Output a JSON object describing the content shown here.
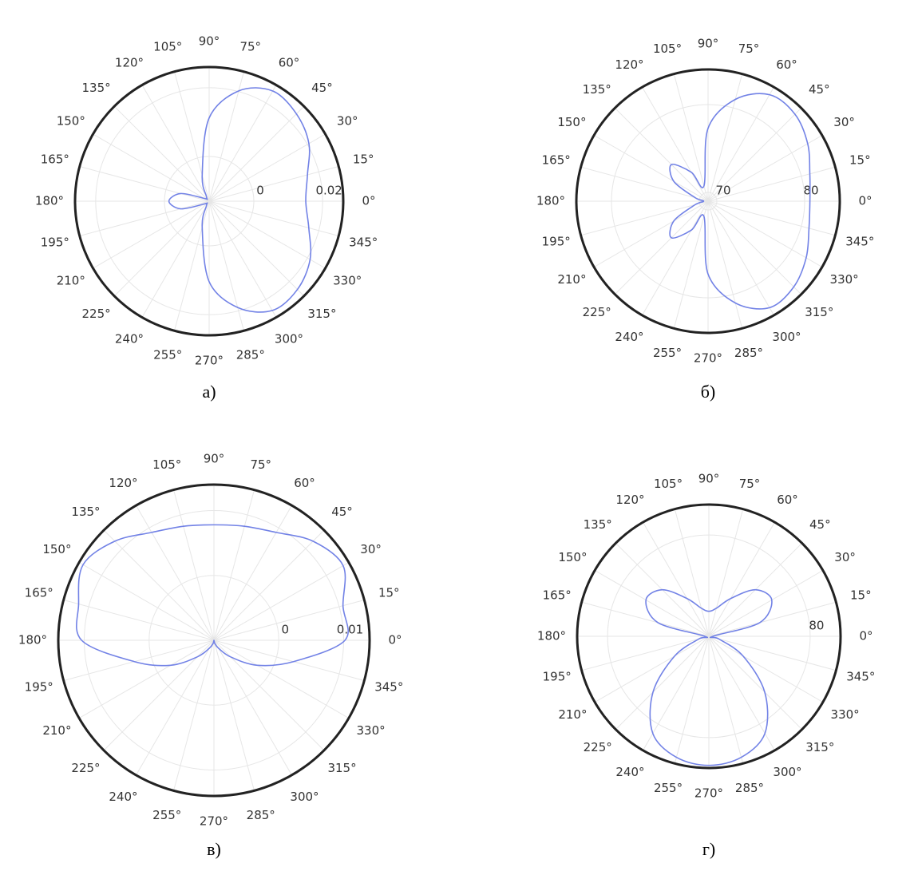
{
  "chart_data": [
    {
      "type": "polar",
      "caption": "а)",
      "rlim": [
        -0.013,
        0.026
      ],
      "rticks": [
        0,
        0.02
      ],
      "theta_ticks": [
        {
          "value": 0,
          "label": "0°"
        },
        {
          "value": 15,
          "label": "15°"
        },
        {
          "value": 30,
          "label": "30°"
        },
        {
          "value": 45,
          "label": "45°"
        },
        {
          "value": 60,
          "label": "60°"
        },
        {
          "value": 75,
          "label": "75°"
        },
        {
          "value": 90,
          "label": "90°"
        },
        {
          "value": 105,
          "label": "105°"
        },
        {
          "value": 120,
          "label": "120°"
        },
        {
          "value": 135,
          "label": "135°"
        },
        {
          "value": 150,
          "label": "150°"
        },
        {
          "value": 165,
          "label": "165°"
        },
        {
          "value": 180,
          "label": "180°"
        },
        {
          "value": 195,
          "label": "195°"
        },
        {
          "value": 210,
          "label": "210°"
        },
        {
          "value": 225,
          "label": "225°"
        },
        {
          "value": 240,
          "label": "240°"
        },
        {
          "value": 255,
          "label": "255°"
        },
        {
          "value": 270,
          "label": "270°"
        },
        {
          "value": 285,
          "label": "285°"
        },
        {
          "value": 300,
          "label": "300°"
        },
        {
          "value": 315,
          "label": "315°"
        },
        {
          "value": 330,
          "label": "330°"
        },
        {
          "value": 345,
          "label": "345°"
        }
      ],
      "series": [
        {
          "color": "#7282e6",
          "theta": [
            0,
            15,
            30,
            45,
            60,
            75,
            90,
            105,
            120,
            135,
            150,
            165,
            180,
            195,
            210,
            225,
            240,
            255,
            270,
            285,
            300,
            315,
            330,
            345
          ],
          "r": [
            0.0151,
            0.0166,
            0.0205,
            0.0229,
            0.024,
            0.0202,
            0.0112,
            -0.0052,
            -0.0114,
            -0.0122,
            -0.0114,
            -0.0044,
            -0.0013,
            -0.0044,
            -0.0114,
            -0.0122,
            -0.0114,
            -0.0052,
            0.0104,
            0.019,
            0.0237,
            0.0233,
            0.0209,
            0.017
          ]
        }
      ]
    },
    {
      "type": "polar",
      "caption": "б)",
      "rlim": [
        69,
        84
      ],
      "rticks": [
        70,
        80
      ],
      "theta_ticks": [
        {
          "value": 0,
          "label": "0°"
        },
        {
          "value": 15,
          "label": "15°"
        },
        {
          "value": 30,
          "label": "30°"
        },
        {
          "value": 45,
          "label": "45°"
        },
        {
          "value": 60,
          "label": "60°"
        },
        {
          "value": 75,
          "label": "75°"
        },
        {
          "value": 90,
          "label": "90°"
        },
        {
          "value": 105,
          "label": "105°"
        },
        {
          "value": 120,
          "label": "120°"
        },
        {
          "value": 135,
          "label": "135°"
        },
        {
          "value": 150,
          "label": "150°"
        },
        {
          "value": 165,
          "label": "165°"
        },
        {
          "value": 180,
          "label": "180°"
        },
        {
          "value": 195,
          "label": "195°"
        },
        {
          "value": 210,
          "label": "210°"
        },
        {
          "value": 225,
          "label": "225°"
        },
        {
          "value": 240,
          "label": "240°"
        },
        {
          "value": 255,
          "label": "255°"
        },
        {
          "value": 270,
          "label": "270°"
        },
        {
          "value": 285,
          "label": "285°"
        },
        {
          "value": 300,
          "label": "300°"
        },
        {
          "value": 315,
          "label": "315°"
        },
        {
          "value": 330,
          "label": "330°"
        },
        {
          "value": 345,
          "label": "345°"
        }
      ],
      "series": [
        {
          "color": "#7282e6",
          "theta": [
            0,
            15,
            30,
            45,
            60,
            75,
            90,
            105,
            120,
            135,
            150,
            165,
            180,
            195,
            210,
            225,
            240,
            255,
            270,
            285,
            300,
            315,
            330,
            345
          ],
          "r": [
            80.6,
            81,
            82.1,
            83,
            83,
            81,
            77.3,
            70.8,
            72.8,
            74.9,
            73.5,
            70.5,
            69.5,
            70.5,
            73.5,
            74.9,
            72.8,
            70.8,
            77.3,
            81,
            83,
            82.8,
            81.9,
            80.9
          ]
        }
      ]
    },
    {
      "type": "polar",
      "caption": "в)",
      "rlim": [
        -0.01,
        0.014
      ],
      "rticks": [
        0,
        0.01
      ],
      "theta_ticks": [
        {
          "value": 0,
          "label": "0°"
        },
        {
          "value": 15,
          "label": "15°"
        },
        {
          "value": 30,
          "label": "30°"
        },
        {
          "value": 45,
          "label": "45°"
        },
        {
          "value": 60,
          "label": "60°"
        },
        {
          "value": 75,
          "label": "75°"
        },
        {
          "value": 90,
          "label": "90°"
        },
        {
          "value": 105,
          "label": "105°"
        },
        {
          "value": 120,
          "label": "120°"
        },
        {
          "value": 135,
          "label": "135°"
        },
        {
          "value": 150,
          "label": "150°"
        },
        {
          "value": 165,
          "label": "165°"
        },
        {
          "value": 180,
          "label": "180°"
        },
        {
          "value": 195,
          "label": "195°"
        },
        {
          "value": 210,
          "label": "210°"
        },
        {
          "value": 225,
          "label": "225°"
        },
        {
          "value": 240,
          "label": "240°"
        },
        {
          "value": 255,
          "label": "255°"
        },
        {
          "value": 270,
          "label": "270°"
        },
        {
          "value": 285,
          "label": "285°"
        },
        {
          "value": 300,
          "label": "300°"
        },
        {
          "value": 315,
          "label": "315°"
        },
        {
          "value": 330,
          "label": "330°"
        },
        {
          "value": 345,
          "label": "345°"
        }
      ],
      "series": [
        {
          "color": "#7282e6",
          "theta": [
            0,
            15,
            30,
            45,
            60,
            75,
            90,
            105,
            120,
            135,
            150,
            165,
            180,
            195,
            210,
            225,
            240,
            255,
            270,
            285,
            300,
            315,
            330,
            345
          ],
          "r": [
            0.0102,
            0.0106,
            0.013,
            0.0116,
            0.0092,
            0.0082,
            0.0078,
            0.0082,
            0.0092,
            0.0116,
            0.0133,
            0.0116,
            0.0104,
            0.0027,
            -0.0023,
            -0.0064,
            -0.0086,
            -0.0095,
            -0.01,
            -0.0095,
            -0.0086,
            -0.0064,
            -0.0023,
            0.0027
          ]
        }
      ]
    },
    {
      "type": "polar",
      "caption": "г)",
      "rlim": [
        50,
        89
      ],
      "rticks": [
        80
      ],
      "theta_ticks": [
        {
          "value": 0,
          "label": "0°"
        },
        {
          "value": 15,
          "label": "15°"
        },
        {
          "value": 30,
          "label": "30°"
        },
        {
          "value": 45,
          "label": "45°"
        },
        {
          "value": 60,
          "label": "60°"
        },
        {
          "value": 75,
          "label": "75°"
        },
        {
          "value": 90,
          "label": "90°"
        },
        {
          "value": 105,
          "label": "105°"
        },
        {
          "value": 120,
          "label": "120°"
        },
        {
          "value": 135,
          "label": "135°"
        },
        {
          "value": 150,
          "label": "150°"
        },
        {
          "value": 165,
          "label": "165°"
        },
        {
          "value": 180,
          "label": "180°"
        },
        {
          "value": 195,
          "label": "195°"
        },
        {
          "value": 210,
          "label": "210°"
        },
        {
          "value": 225,
          "label": "225°"
        },
        {
          "value": 240,
          "label": "240°"
        },
        {
          "value": 255,
          "label": "255°"
        },
        {
          "value": 270,
          "label": "270°"
        },
        {
          "value": 285,
          "label": "285°"
        },
        {
          "value": 300,
          "label": "300°"
        },
        {
          "value": 315,
          "label": "315°"
        },
        {
          "value": 330,
          "label": "330°"
        },
        {
          "value": 345,
          "label": "345°"
        }
      ],
      "series": [
        {
          "color": "#7282e6",
          "theta": [
            0,
            15,
            30,
            45,
            60,
            75,
            90,
            105,
            120,
            135,
            150,
            165,
            180,
            195,
            210,
            225,
            240,
            255,
            270,
            285,
            300,
            315,
            330,
            345
          ],
          "r": [
            51.2,
            65.6,
            71.5,
            69.5,
            62.9,
            58.6,
            57.4,
            58.6,
            62.9,
            69.5,
            71.5,
            65.6,
            51.2,
            53.1,
            61.7,
            73.4,
            83.2,
            87.1,
            88.2,
            87.1,
            83.2,
            73.4,
            61.7,
            53.1
          ]
        }
      ]
    }
  ]
}
